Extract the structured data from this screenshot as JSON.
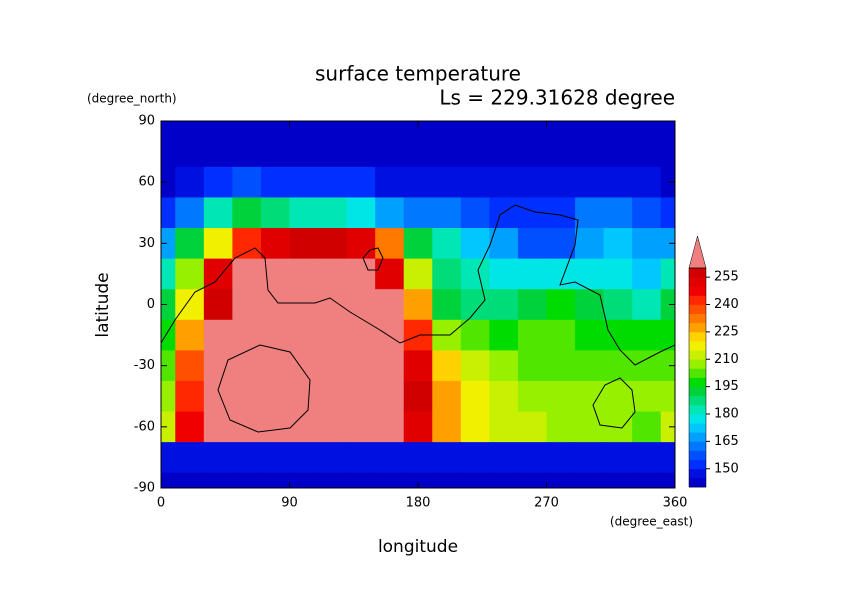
{
  "chart_data": {
    "type": "contour",
    "title": "surface temperature",
    "subtitle": "Ls = 229.31628 degree",
    "xlabel": "longitude",
    "ylabel": "latitude",
    "x_units": "(degree_east)",
    "y_units": "(degree_north)",
    "x": [
      0,
      20,
      40,
      60,
      80,
      100,
      120,
      140,
      160,
      180,
      200,
      220,
      240,
      260,
      280,
      300,
      320,
      340,
      360
    ],
    "y": [
      90,
      75,
      60,
      45,
      30,
      15,
      0,
      -15,
      -30,
      -45,
      -60,
      -75,
      -90
    ],
    "z": [
      [
        143,
        143,
        143,
        143,
        143,
        143,
        143,
        143,
        143,
        143,
        143,
        143,
        143,
        143,
        143,
        143,
        143,
        143,
        143
      ],
      [
        143,
        143,
        143,
        143,
        143,
        143,
        143,
        143,
        143,
        143,
        143,
        143,
        143,
        143,
        143,
        143,
        143,
        143,
        143
      ],
      [
        143,
        147,
        152,
        155,
        153,
        152,
        151,
        150,
        148,
        147,
        146,
        146,
        145,
        145,
        145,
        147,
        147,
        146,
        143
      ],
      [
        150,
        160,
        180,
        190,
        185,
        180,
        180,
        175,
        165,
        160,
        160,
        155,
        150,
        150,
        152,
        160,
        160,
        155,
        150
      ],
      [
        165,
        190,
        215,
        240,
        250,
        258,
        258,
        250,
        230,
        190,
        180,
        170,
        165,
        158,
        155,
        165,
        170,
        165,
        165
      ],
      [
        180,
        205,
        250,
        265,
        265,
        265,
        265,
        262,
        250,
        210,
        185,
        180,
        175,
        175,
        178,
        175,
        175,
        172,
        180
      ],
      [
        190,
        215,
        258,
        265,
        265,
        265,
        265,
        265,
        262,
        225,
        190,
        185,
        185,
        190,
        195,
        190,
        185,
        180,
        190
      ],
      [
        195,
        225,
        260,
        265,
        265,
        265,
        265,
        265,
        265,
        240,
        205,
        200,
        198,
        200,
        200,
        198,
        195,
        195,
        195
      ],
      [
        200,
        235,
        265,
        265,
        265,
        265,
        265,
        265,
        265,
        250,
        220,
        210,
        205,
        202,
        200,
        200,
        200,
        200,
        200
      ],
      [
        205,
        240,
        265,
        265,
        265,
        265,
        265,
        265,
        265,
        255,
        225,
        215,
        210,
        205,
        205,
        205,
        205,
        205,
        205
      ],
      [
        210,
        245,
        262,
        262,
        262,
        262,
        262,
        262,
        262,
        250,
        225,
        215,
        210,
        210,
        205,
        205,
        205,
        200,
        210
      ],
      [
        146,
        146,
        146,
        146,
        146,
        146,
        146,
        146,
        146,
        146,
        146,
        146,
        146,
        146,
        146,
        146,
        146,
        146,
        146
      ],
      [
        143,
        143,
        143,
        143,
        143,
        143,
        143,
        143,
        143,
        143,
        143,
        143,
        143,
        143,
        143,
        143,
        143,
        143,
        143
      ]
    ],
    "xlim": [
      0,
      360
    ],
    "xticks": [
      0,
      90,
      180,
      270,
      360
    ],
    "ylim": [
      -90,
      90
    ],
    "yticks": [
      -90,
      -60,
      -30,
      0,
      30,
      60,
      90
    ],
    "colorbar": {
      "levels": [
        140,
        145,
        150,
        155,
        160,
        165,
        170,
        175,
        180,
        185,
        190,
        195,
        200,
        205,
        210,
        215,
        220,
        225,
        230,
        235,
        240,
        245,
        250,
        255,
        260
      ],
      "colors": [
        "#0000c8",
        "#0010e0",
        "#0030ff",
        "#0050ff",
        "#0078ff",
        "#00a0ff",
        "#00c8ff",
        "#00e6e6",
        "#00e6b4",
        "#00dc78",
        "#00d23c",
        "#00dc00",
        "#50e600",
        "#96f000",
        "#c8f000",
        "#f0f000",
        "#ffd200",
        "#ffa000",
        "#ff7800",
        "#ff5000",
        "#ff2800",
        "#f00000",
        "#e00000",
        "#d00000"
      ],
      "over_color": "#f08080",
      "ticks": [
        150,
        165,
        180,
        195,
        210,
        225,
        240,
        255
      ]
    }
  }
}
